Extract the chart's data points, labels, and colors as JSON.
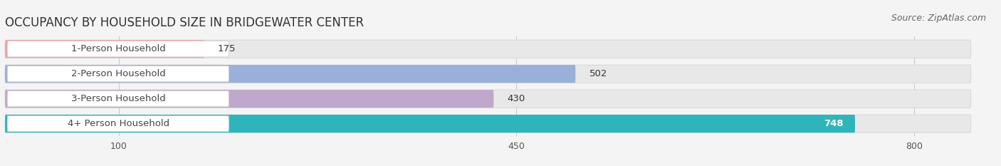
{
  "title": "OCCUPANCY BY HOUSEHOLD SIZE IN BRIDGEWATER CENTER",
  "source": "Source: ZipAtlas.com",
  "categories": [
    "1-Person Household",
    "2-Person Household",
    "3-Person Household",
    "4+ Person Household"
  ],
  "values": [
    175,
    502,
    430,
    748
  ],
  "bar_colors": [
    "#f0a0a8",
    "#9ab0d8",
    "#c0a8cc",
    "#2eb5bb"
  ],
  "track_color": "#e8e8e8",
  "label_box_color": "#ffffff",
  "background_color": "#f4f4f4",
  "xlim_max": 850,
  "xticks": [
    100,
    450,
    800
  ],
  "bar_height": 0.72,
  "title_fontsize": 12,
  "source_fontsize": 9,
  "label_fontsize": 9.5,
  "value_fontsize": 9.5,
  "grid_color": "#cccccc"
}
